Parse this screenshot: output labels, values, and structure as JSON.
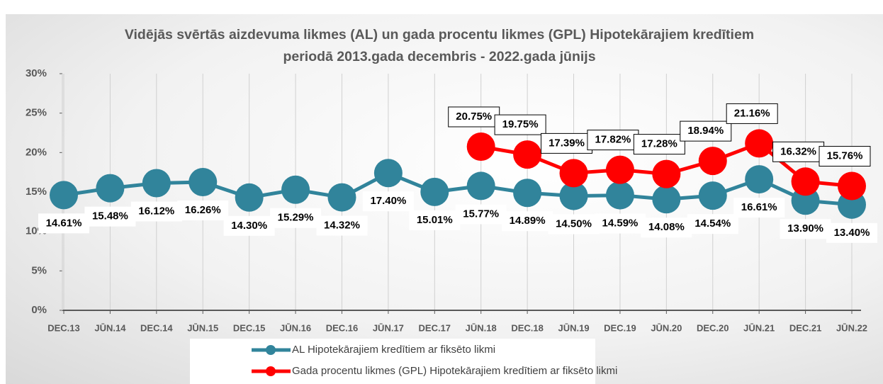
{
  "chart_data": {
    "type": "line",
    "title": "Vidējās svērtās aizdevuma likmes (AL) un gada procentu likmes (GPL) Hipotekārajiem kredītiem periodā 2013.gada decembris - 2022.gada jūnijs",
    "categories": [
      "DEC.13",
      "JŪN.14",
      "DEC.14",
      "JŪN.15",
      "DEC.15",
      "JŪN.16",
      "DEC.16",
      "JŪN.17",
      "DEC.17",
      "JŪN.18",
      "DEC.18",
      "JŪN.19",
      "DEC.19",
      "JŪN.20",
      "DEC.20",
      "JŪN.21",
      "DEC.21",
      "JŪN.22"
    ],
    "series": [
      {
        "name": "AL Hipotekārajiem kredītiem ar fiksēto likmi",
        "color": "#31849b",
        "values": [
          14.61,
          15.48,
          16.12,
          16.26,
          14.3,
          15.29,
          14.32,
          17.4,
          15.01,
          15.77,
          14.89,
          14.5,
          14.59,
          14.08,
          14.54,
          16.61,
          13.9,
          13.4
        ],
        "value_labels": [
          "14.61%",
          "15.48%",
          "16.12%",
          "16.26%",
          "14.30%",
          "15.29%",
          "14.32%",
          "17.40%",
          "15.01%",
          "15.77%",
          "14.89%",
          "14.50%",
          "14.59%",
          "14.08%",
          "14.54%",
          "16.61%",
          "13.90%",
          "13.40%"
        ]
      },
      {
        "name": "Gada procentu likmes (GPL) Hipotekārajiem kredītiem ar fiksēto likmi",
        "color": "#ff0000",
        "values": [
          null,
          null,
          null,
          null,
          null,
          null,
          null,
          null,
          null,
          20.75,
          19.75,
          17.39,
          17.82,
          17.28,
          18.94,
          21.16,
          16.32,
          15.76
        ],
        "value_labels": [
          null,
          null,
          null,
          null,
          null,
          null,
          null,
          null,
          null,
          "20.75%",
          "19.75%",
          "17.39%",
          "17.82%",
          "17.28%",
          "18.94%",
          "21.16%",
          "16.32%",
          "15.76%"
        ]
      }
    ],
    "ylim": [
      0,
      30
    ],
    "yticks": [
      {
        "value": 0,
        "label": "0%"
      },
      {
        "value": 5,
        "label": "5%"
      },
      {
        "value": 10,
        "label": "10%"
      },
      {
        "value": 15,
        "label": "15%"
      },
      {
        "value": 20,
        "label": "20%"
      },
      {
        "value": 25,
        "label": "25%"
      },
      {
        "value": 30,
        "label": "30%"
      }
    ],
    "grid": true
  }
}
